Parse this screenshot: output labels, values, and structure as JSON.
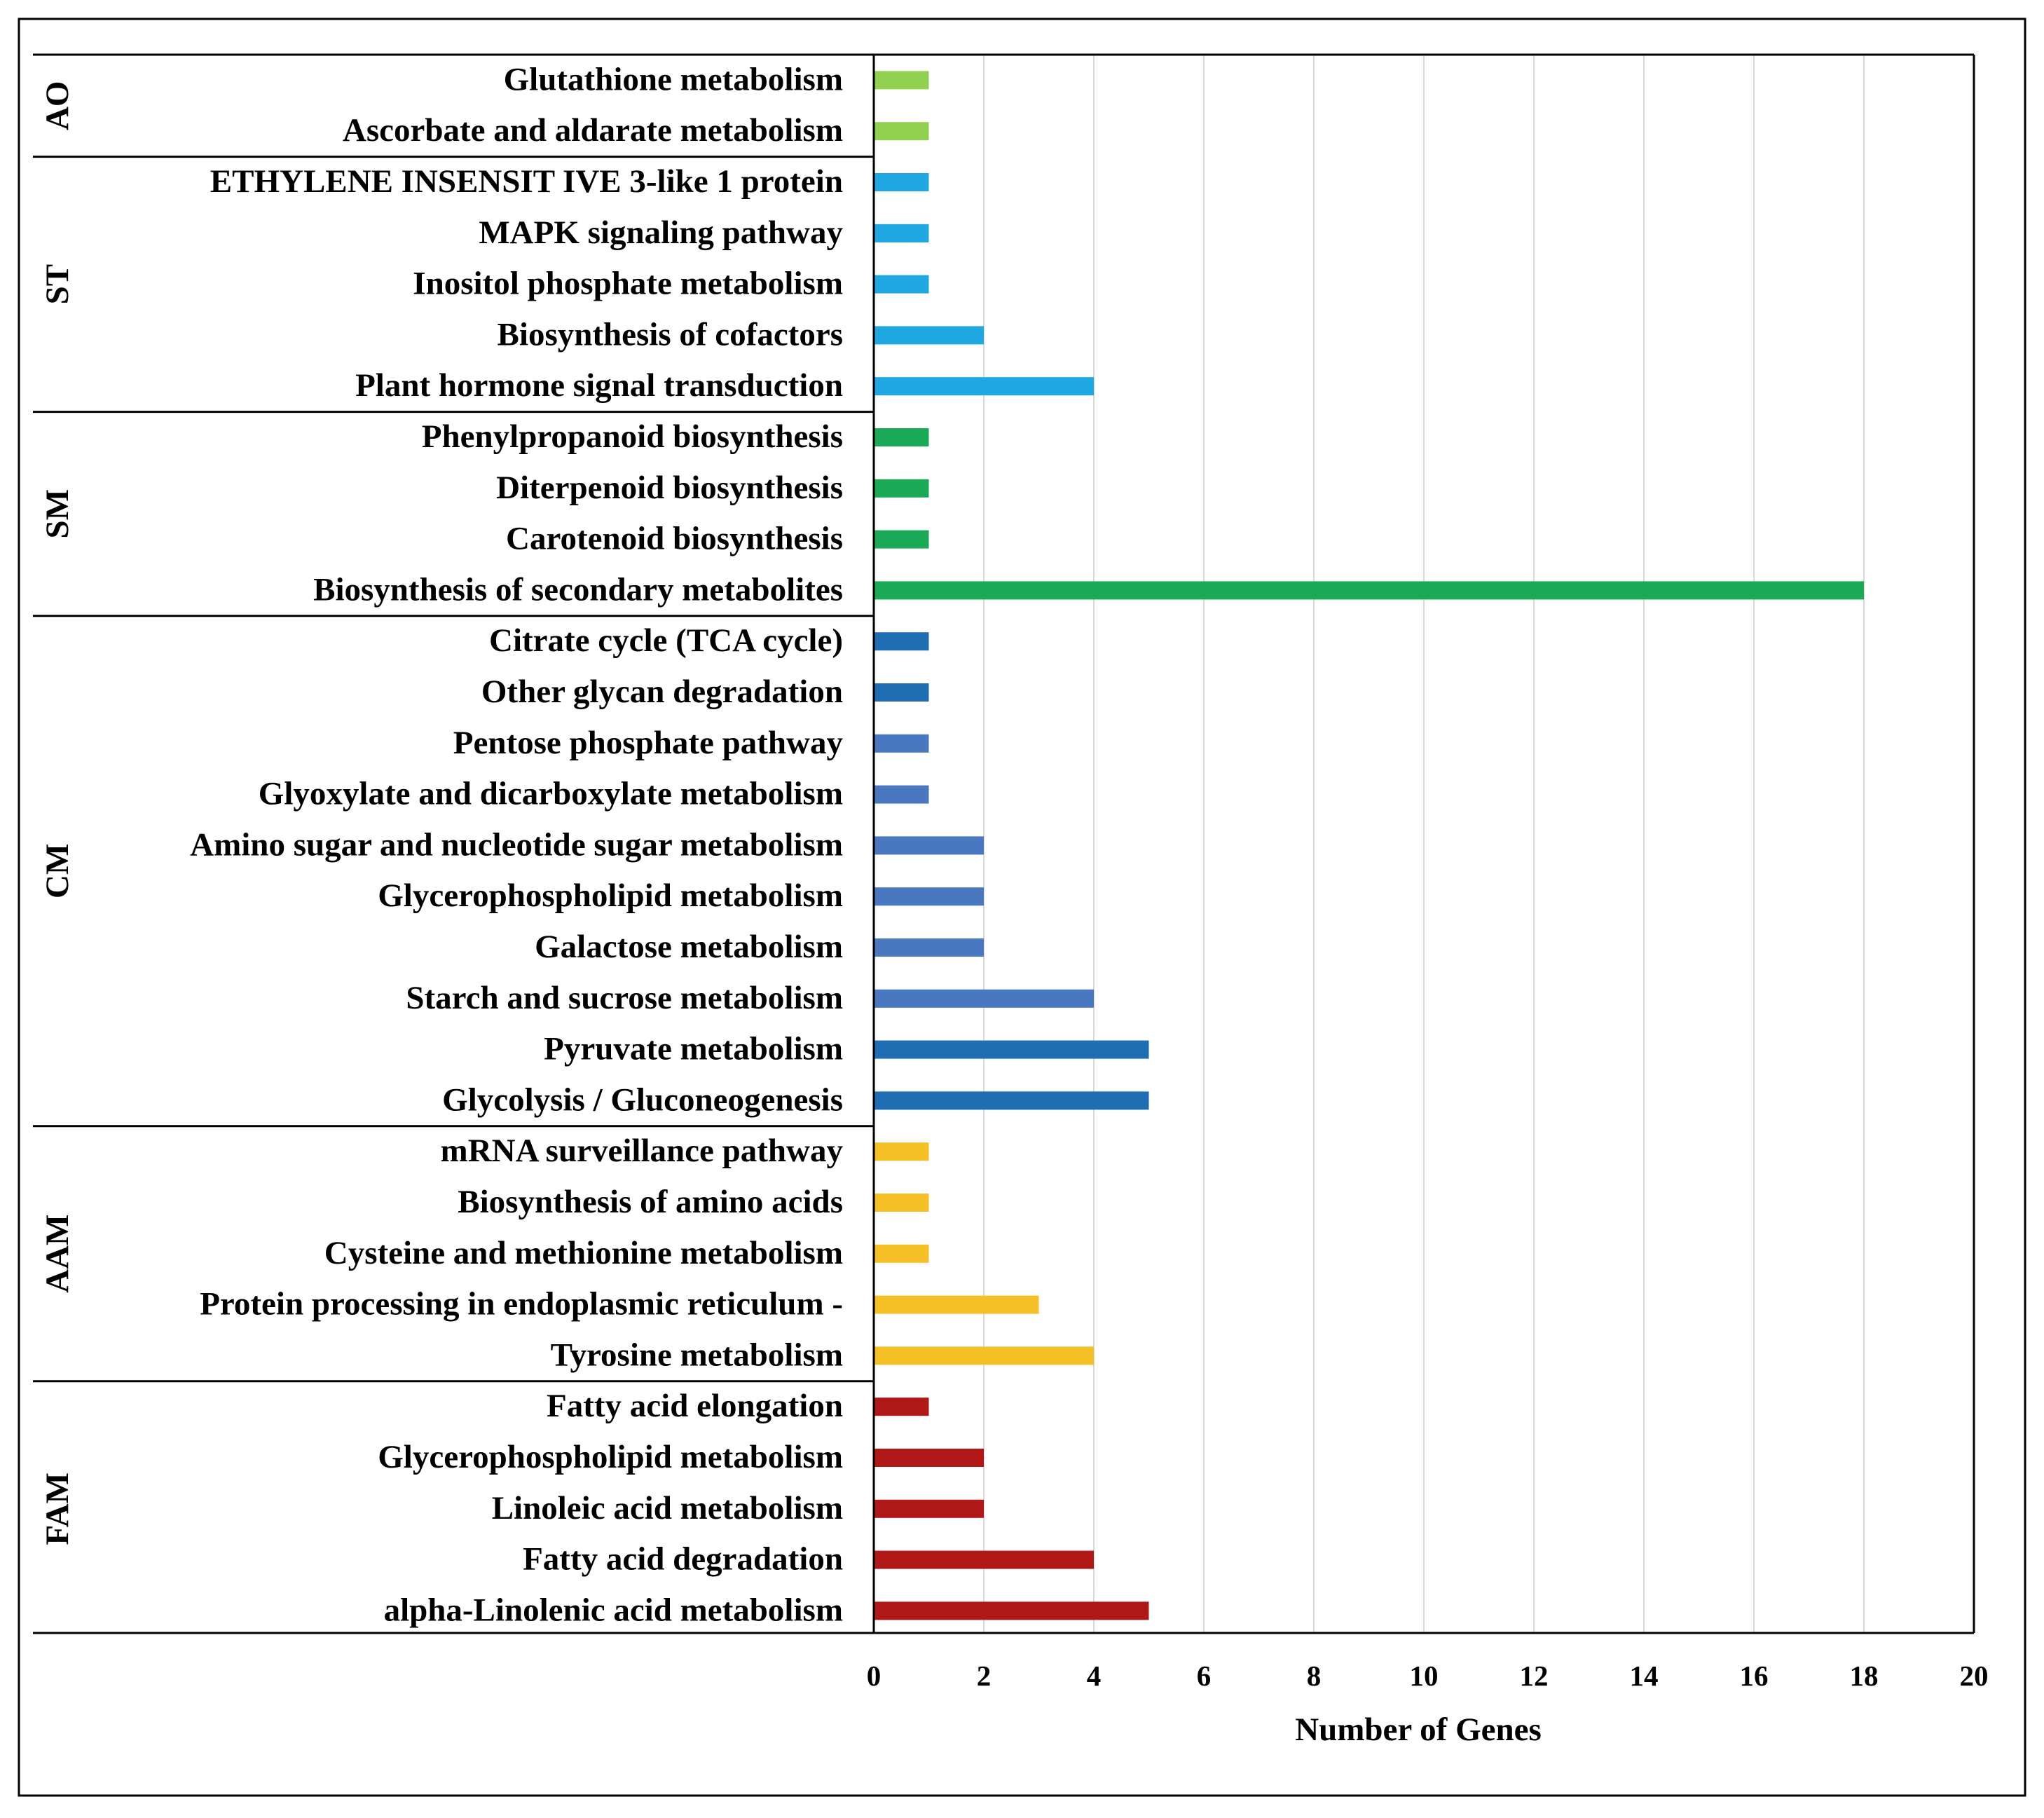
{
  "chart_data": {
    "type": "bar",
    "orientation": "horizontal",
    "xlabel": "Number of Genes",
    "xlim": [
      0,
      20
    ],
    "xticks": [
      0,
      2,
      4,
      6,
      8,
      10,
      12,
      14,
      16,
      18,
      20
    ],
    "grid": true,
    "groups": [
      {
        "name": "AO",
        "items": [
          {
            "label": "Glutathione metabolism",
            "value": 1,
            "color": "#92d050"
          },
          {
            "label": "Ascorbate and aldarate metabolism",
            "value": 1,
            "color": "#92d050"
          }
        ]
      },
      {
        "name": "ST",
        "items": [
          {
            "label": "ETHYLENE INSENSIT IVE 3-like 1 protein",
            "value": 1,
            "color": "#1ea7e1"
          },
          {
            "label": "MAPK signaling pathway",
            "value": 1,
            "color": "#1ea7e1"
          },
          {
            "label": "Inositol phosphate metabolism",
            "value": 1,
            "color": "#1ea7e1"
          },
          {
            "label": "Biosynthesis of cofactors",
            "value": 2,
            "color": "#1ea7e1"
          },
          {
            "label": "Plant hormone signal transduction",
            "value": 4,
            "color": "#1ea7e1"
          }
        ]
      },
      {
        "name": "SM",
        "items": [
          {
            "label": "Phenylpropanoid biosynthesis",
            "value": 1,
            "color": "#1aaa55"
          },
          {
            "label": "Diterpenoid biosynthesis",
            "value": 1,
            "color": "#1aaa55"
          },
          {
            "label": "Carotenoid biosynthesis",
            "value": 1,
            "color": "#1aaa55"
          },
          {
            "label": "Biosynthesis of secondary metabolites",
            "value": 18,
            "color": "#1aaa55"
          }
        ]
      },
      {
        "name": "CM",
        "items": [
          {
            "label": "Citrate cycle (TCA cycle)",
            "value": 1,
            "color": "#1f6eb4"
          },
          {
            "label": "Other glycan degradation",
            "value": 1,
            "color": "#1f6eb4"
          },
          {
            "label": "Pentose phosphate pathway",
            "value": 1,
            "color": "#4a78c0"
          },
          {
            "label": "Glyoxylate and dicarboxylate metabolism",
            "value": 1,
            "color": "#4a78c0"
          },
          {
            "label": "Amino sugar and nucleotide sugar metabolism",
            "value": 2,
            "color": "#4a78c0"
          },
          {
            "label": "Glycerophospholipid metabolism",
            "value": 2,
            "color": "#4a78c0"
          },
          {
            "label": "Galactose metabolism",
            "value": 2,
            "color": "#4a78c0"
          },
          {
            "label": "Starch and sucrose metabolism",
            "value": 4,
            "color": "#4a78c0"
          },
          {
            "label": "Pyruvate metabolism",
            "value": 5,
            "color": "#1f6eb4"
          },
          {
            "label": "Glycolysis / Gluconeogenesis",
            "value": 5,
            "color": "#1f6eb4"
          }
        ]
      },
      {
        "name": "AAM",
        "items": [
          {
            "label": "mRNA surveillance pathway",
            "value": 1,
            "color": "#f5c026"
          },
          {
            "label": "Biosynthesis of amino acids",
            "value": 1,
            "color": "#f5c026"
          },
          {
            "label": "Cysteine and methionine metabolism",
            "value": 1,
            "color": "#f5c026"
          },
          {
            "label": "Protein processing in endoplasmic reticulum -",
            "value": 3,
            "color": "#f5c026"
          },
          {
            "label": "Tyrosine metabolism",
            "value": 4,
            "color": "#f5c026"
          }
        ]
      },
      {
        "name": "FAM",
        "items": [
          {
            "label": "Fatty acid elongation",
            "value": 1,
            "color": "#b01818"
          },
          {
            "label": "Glycerophospholipid metabolism",
            "value": 2,
            "color": "#b01818"
          },
          {
            "label": "Linoleic acid metabolism",
            "value": 2,
            "color": "#b01818"
          },
          {
            "label": "Fatty acid degradation",
            "value": 4,
            "color": "#b01818"
          },
          {
            "label": "alpha-Linolenic acid metabolism",
            "value": 5,
            "color": "#b01818"
          }
        ]
      }
    ]
  }
}
